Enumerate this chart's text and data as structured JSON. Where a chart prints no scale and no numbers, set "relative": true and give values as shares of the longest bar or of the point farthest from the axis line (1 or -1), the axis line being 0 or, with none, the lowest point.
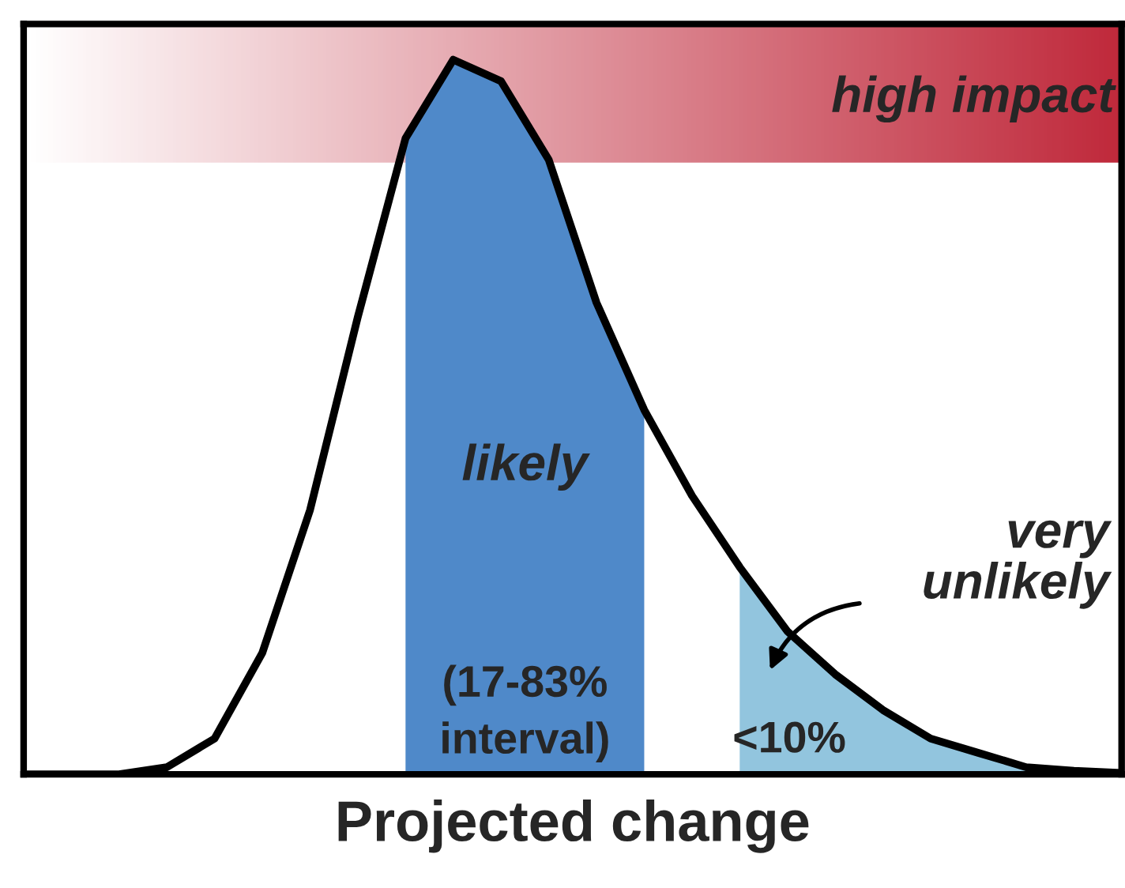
{
  "chart_data": {
    "type": "line",
    "relative": true,
    "xlabel": "Projected change",
    "categories": [
      null,
      null,
      null,
      null,
      null,
      null,
      null,
      null,
      null,
      null,
      null,
      null,
      null,
      null,
      null,
      null,
      null,
      null,
      null,
      null,
      null,
      null,
      null,
      null
    ],
    "series": [
      {
        "color": "#000000",
        "values": [
          0,
          0,
          0,
          0.01,
          0.05,
          0.17,
          0.37,
          0.64,
          0.89,
          1,
          0.97,
          0.86,
          0.66,
          0.51,
          0.39,
          0.29,
          0.2,
          0.14,
          0.09,
          0.05,
          0.03,
          0.01,
          0.005,
          0.002
        ]
      },
      {
        "type": "area",
        "color": "#4f89c9",
        "values": [
          null,
          null,
          null,
          null,
          null,
          null,
          null,
          null,
          0.89,
          1,
          0.97,
          0.86,
          0.66,
          0.51,
          null,
          null,
          null,
          null,
          null,
          null,
          null,
          null,
          null,
          null
        ]
      },
      {
        "type": "area",
        "color": "#92c5de",
        "values": [
          null,
          null,
          null,
          null,
          null,
          null,
          null,
          null,
          null,
          null,
          null,
          null,
          null,
          null,
          null,
          0.29,
          0.2,
          0.14,
          0.09,
          0.05,
          0.03,
          0.01,
          0.005,
          0.002
        ]
      }
    ],
    "marker": "none",
    "line_style": "solid",
    "annotations": [
      "high impact",
      "likely",
      "(17-83%\ninterval)",
      "very\nunlikely",
      "<10%"
    ]
  }
}
